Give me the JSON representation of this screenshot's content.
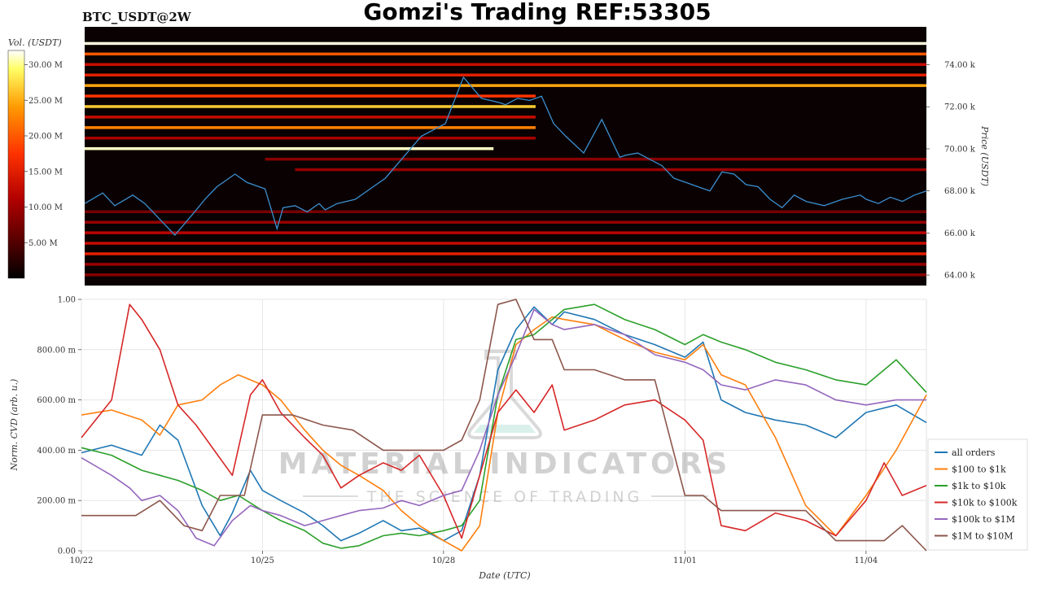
{
  "header": {
    "title": "Gomzi's Trading REF:53305",
    "symbol": "BTC_USDT@2W"
  },
  "watermark": {
    "line1": "MATERIAL INDICATORS",
    "line2": "THE SCIENCE OF TRADING"
  },
  "chart_data": [
    {
      "type": "heatmap",
      "colorbar": {
        "label": "Vol. (USDT)",
        "ticks": [
          "5.00 M",
          "10.00 M",
          "15.00 M",
          "20.00 M",
          "25.00 M",
          "30.00 M"
        ],
        "tick_values": [
          5,
          10,
          15,
          20,
          25,
          30
        ],
        "range": [
          0,
          32
        ],
        "colormap": [
          "#000000",
          "#5a0000",
          "#b30000",
          "#ff3300",
          "#ff9900",
          "#ffff66",
          "#ffffff"
        ]
      },
      "ylabel": "Price (USDT)",
      "ylim": [
        63.5,
        75.8
      ],
      "y_ticks": [
        "64.00 k",
        "66.00 k",
        "68.00 k",
        "70.00 k",
        "72.00 k",
        "74.00 k"
      ],
      "y_tick_values": [
        64,
        66,
        68,
        70,
        72,
        74
      ],
      "price_line_color": "#3b8fd0",
      "price_series": {
        "t": [
          0,
          0.3,
          0.5,
          0.8,
          1.0,
          1.3,
          1.5,
          1.8,
          2.0,
          2.2,
          2.5,
          2.7,
          3.0,
          3.2,
          3.3,
          3.5,
          3.7,
          3.9,
          4.0,
          4.2,
          4.5,
          4.8,
          5.0,
          5.3,
          5.6,
          6.0,
          6.3,
          6.6,
          6.9,
          7.0,
          7.2,
          7.4,
          7.6,
          7.8,
          8.0,
          8.3,
          8.6,
          8.9,
          9.0,
          9.2,
          9.4,
          9.6,
          9.8,
          10.0,
          10.2,
          10.4,
          10.6,
          10.8,
          11.0,
          11.2,
          11.4,
          11.6,
          11.8,
          12.0,
          12.3,
          12.6,
          12.9,
          13.0,
          13.2,
          13.4,
          13.6,
          13.8,
          14.0
        ],
        "v": [
          67.4,
          67.9,
          67.3,
          67.8,
          67.4,
          66.5,
          65.9,
          66.9,
          67.6,
          68.2,
          68.8,
          68.4,
          68.1,
          66.2,
          67.2,
          67.3,
          67.0,
          67.4,
          67.1,
          67.4,
          67.6,
          68.2,
          68.6,
          69.6,
          70.6,
          71.2,
          73.4,
          72.4,
          72.2,
          72.1,
          72.4,
          72.3,
          72.5,
          71.2,
          70.6,
          69.8,
          71.4,
          69.6,
          69.7,
          69.8,
          69.5,
          69.2,
          68.6,
          68.4,
          68.2,
          68.0,
          68.9,
          68.8,
          68.3,
          68.2,
          67.6,
          67.2,
          67.8,
          67.5,
          67.3,
          67.6,
          67.8,
          67.6,
          67.4,
          67.7,
          67.5,
          67.8,
          68.0
        ]
      },
      "heat_levels": [
        {
          "price": 75.0,
          "vol": 31,
          "from": 0,
          "to": 14
        },
        {
          "price": 74.5,
          "vol": 18,
          "from": 0,
          "to": 14
        },
        {
          "price": 74.0,
          "vol": 12,
          "from": 0,
          "to": 14
        },
        {
          "price": 73.5,
          "vol": 14,
          "from": 0,
          "to": 14
        },
        {
          "price": 73.0,
          "vol": 22,
          "from": 0,
          "to": 14
        },
        {
          "price": 72.5,
          "vol": 16,
          "from": 0,
          "to": 7.5
        },
        {
          "price": 72.0,
          "vol": 24,
          "from": 0,
          "to": 7.5
        },
        {
          "price": 71.5,
          "vol": 12,
          "from": 0,
          "to": 7.5
        },
        {
          "price": 71.0,
          "vol": 20,
          "from": 0,
          "to": 7.5
        },
        {
          "price": 70.5,
          "vol": 10,
          "from": 0,
          "to": 7.5
        },
        {
          "price": 70.0,
          "vol": 30,
          "from": 0,
          "to": 6.8
        },
        {
          "price": 69.5,
          "vol": 8,
          "from": 3,
          "to": 14
        },
        {
          "price": 69.0,
          "vol": 9,
          "from": 3.5,
          "to": 14
        },
        {
          "price": 67.0,
          "vol": 7,
          "from": 0,
          "to": 14
        },
        {
          "price": 66.5,
          "vol": 9,
          "from": 0,
          "to": 14
        },
        {
          "price": 66.0,
          "vol": 11,
          "from": 0,
          "to": 14
        },
        {
          "price": 65.5,
          "vol": 12,
          "from": 0,
          "to": 14
        },
        {
          "price": 65.0,
          "vol": 14,
          "from": 0,
          "to": 14
        },
        {
          "price": 64.5,
          "vol": 9,
          "from": 0,
          "to": 14
        },
        {
          "price": 64.0,
          "vol": 8,
          "from": 0,
          "to": 14
        }
      ]
    },
    {
      "type": "line",
      "xlabel": "Date (UTC)",
      "ylabel": "Norm. CVD (arb. u.)",
      "xlim": [
        0,
        14
      ],
      "ylim": [
        0,
        1.0
      ],
      "x_ticks": [
        "10/22",
        "10/25",
        "10/28",
        "11/01",
        "11/04"
      ],
      "x_tick_values": [
        0,
        3,
        6,
        10,
        13
      ],
      "y_ticks": [
        "0.00",
        "200.00 m",
        "400.00 m",
        "600.00 m",
        "800.00 m",
        "1.00"
      ],
      "y_tick_values": [
        0,
        0.2,
        0.4,
        0.6,
        0.8,
        1.0
      ],
      "grid": true,
      "legend_position": "bottom-right",
      "series": [
        {
          "name": "all orders",
          "color": "#1f77b4",
          "x": [
            0,
            0.5,
            1.0,
            1.3,
            1.6,
            2.0,
            2.3,
            2.5,
            2.8,
            3.0,
            3.3,
            3.7,
            4.0,
            4.3,
            4.6,
            5.0,
            5.3,
            5.6,
            6.0,
            6.3,
            6.6,
            6.9,
            7.2,
            7.5,
            7.8,
            8.0,
            8.5,
            9.0,
            9.5,
            10.0,
            10.3,
            10.6,
            11.0,
            11.5,
            12.0,
            12.5,
            13.0,
            13.5,
            14.0
          ],
          "y": [
            0.39,
            0.42,
            0.38,
            0.5,
            0.44,
            0.18,
            0.06,
            0.15,
            0.32,
            0.24,
            0.2,
            0.15,
            0.1,
            0.04,
            0.07,
            0.12,
            0.08,
            0.09,
            0.04,
            0.08,
            0.3,
            0.72,
            0.88,
            0.97,
            0.9,
            0.95,
            0.92,
            0.86,
            0.82,
            0.77,
            0.83,
            0.6,
            0.55,
            0.52,
            0.5,
            0.45,
            0.55,
            0.58,
            0.51
          ]
        },
        {
          "name": "$100 to $1k",
          "color": "#ff7f0e",
          "x": [
            0,
            0.5,
            1.0,
            1.3,
            1.6,
            2.0,
            2.3,
            2.6,
            3.0,
            3.3,
            3.7,
            4.0,
            4.3,
            4.6,
            5.0,
            5.3,
            5.6,
            6.0,
            6.3,
            6.6,
            6.9,
            7.2,
            7.5,
            7.8,
            8.0,
            8.5,
            9.0,
            9.5,
            10.0,
            10.3,
            10.6,
            11.0,
            11.5,
            12.0,
            12.5,
            13.0,
            13.5,
            14.0
          ],
          "y": [
            0.54,
            0.56,
            0.52,
            0.46,
            0.58,
            0.6,
            0.66,
            0.7,
            0.66,
            0.6,
            0.48,
            0.4,
            0.34,
            0.3,
            0.24,
            0.16,
            0.1,
            0.04,
            0.0,
            0.1,
            0.55,
            0.82,
            0.88,
            0.93,
            0.92,
            0.9,
            0.84,
            0.79,
            0.76,
            0.82,
            0.7,
            0.66,
            0.45,
            0.18,
            0.06,
            0.22,
            0.4,
            0.62
          ]
        },
        {
          "name": "$1k to $10k",
          "color": "#2ca02c",
          "x": [
            0,
            0.5,
            1.0,
            1.3,
            1.6,
            2.0,
            2.3,
            2.6,
            3.0,
            3.3,
            3.7,
            4.0,
            4.3,
            4.6,
            5.0,
            5.3,
            5.6,
            6.0,
            6.3,
            6.6,
            6.9,
            7.2,
            7.5,
            7.8,
            8.0,
            8.5,
            9.0,
            9.5,
            10.0,
            10.3,
            10.6,
            11.0,
            11.5,
            12.0,
            12.5,
            13.0,
            13.5,
            14.0
          ],
          "y": [
            0.41,
            0.38,
            0.32,
            0.3,
            0.28,
            0.24,
            0.2,
            0.22,
            0.16,
            0.12,
            0.08,
            0.03,
            0.01,
            0.02,
            0.06,
            0.07,
            0.06,
            0.08,
            0.1,
            0.2,
            0.62,
            0.84,
            0.86,
            0.92,
            0.96,
            0.98,
            0.92,
            0.88,
            0.82,
            0.86,
            0.83,
            0.8,
            0.75,
            0.72,
            0.68,
            0.66,
            0.76,
            0.63
          ]
        },
        {
          "name": "$10k to $100k",
          "color": "#d62728",
          "x": [
            0,
            0.5,
            0.8,
            1.0,
            1.3,
            1.6,
            1.9,
            2.2,
            2.5,
            2.8,
            3.0,
            3.3,
            3.7,
            4.0,
            4.3,
            4.6,
            5.0,
            5.3,
            5.6,
            6.0,
            6.3,
            6.6,
            6.9,
            7.2,
            7.5,
            7.8,
            8.0,
            8.5,
            9.0,
            9.5,
            10.0,
            10.3,
            10.6,
            11.0,
            11.5,
            12.0,
            12.5,
            13.0,
            13.3,
            13.6,
            14.0
          ],
          "y": [
            0.45,
            0.6,
            0.98,
            0.92,
            0.8,
            0.58,
            0.5,
            0.4,
            0.3,
            0.62,
            0.68,
            0.55,
            0.45,
            0.38,
            0.25,
            0.3,
            0.35,
            0.32,
            0.38,
            0.22,
            0.05,
            0.3,
            0.55,
            0.64,
            0.55,
            0.66,
            0.48,
            0.52,
            0.58,
            0.6,
            0.52,
            0.44,
            0.1,
            0.08,
            0.15,
            0.12,
            0.06,
            0.2,
            0.35,
            0.22,
            0.26
          ]
        },
        {
          "name": "$100k to $1M",
          "color": "#9467bd",
          "x": [
            0,
            0.5,
            0.8,
            1.0,
            1.3,
            1.6,
            1.9,
            2.2,
            2.5,
            2.8,
            3.0,
            3.3,
            3.7,
            4.0,
            4.3,
            4.6,
            5.0,
            5.3,
            5.6,
            6.0,
            6.3,
            6.6,
            6.9,
            7.2,
            7.5,
            7.8,
            8.0,
            8.5,
            9.0,
            9.5,
            10.0,
            10.3,
            10.6,
            11.0,
            11.5,
            12.0,
            12.5,
            13.0,
            13.5,
            14.0
          ],
          "y": [
            0.37,
            0.3,
            0.25,
            0.2,
            0.22,
            0.16,
            0.05,
            0.02,
            0.12,
            0.18,
            0.16,
            0.14,
            0.1,
            0.12,
            0.14,
            0.16,
            0.17,
            0.2,
            0.18,
            0.22,
            0.24,
            0.4,
            0.62,
            0.78,
            0.96,
            0.9,
            0.88,
            0.9,
            0.86,
            0.78,
            0.75,
            0.72,
            0.66,
            0.64,
            0.68,
            0.66,
            0.6,
            0.58,
            0.6,
            0.6
          ]
        },
        {
          "name": "$1M to $10M",
          "color": "#8c564b",
          "x": [
            0,
            0.9,
            1.3,
            1.7,
            2.0,
            2.3,
            2.7,
            3.0,
            3.5,
            4.0,
            4.5,
            5.0,
            5.5,
            6.0,
            6.3,
            6.6,
            6.9,
            7.2,
            7.5,
            7.8,
            8.0,
            8.5,
            9.0,
            9.5,
            10.0,
            10.3,
            10.6,
            11.0,
            11.5,
            12.0,
            12.5,
            13.0,
            13.3,
            13.6,
            14.0
          ],
          "y": [
            0.14,
            0.14,
            0.2,
            0.1,
            0.08,
            0.22,
            0.22,
            0.54,
            0.54,
            0.5,
            0.48,
            0.4,
            0.4,
            0.4,
            0.44,
            0.6,
            0.98,
            1.0,
            0.84,
            0.84,
            0.72,
            0.72,
            0.68,
            0.68,
            0.22,
            0.22,
            0.16,
            0.16,
            0.16,
            0.16,
            0.04,
            0.04,
            0.04,
            0.1,
            0.0
          ]
        }
      ]
    }
  ]
}
